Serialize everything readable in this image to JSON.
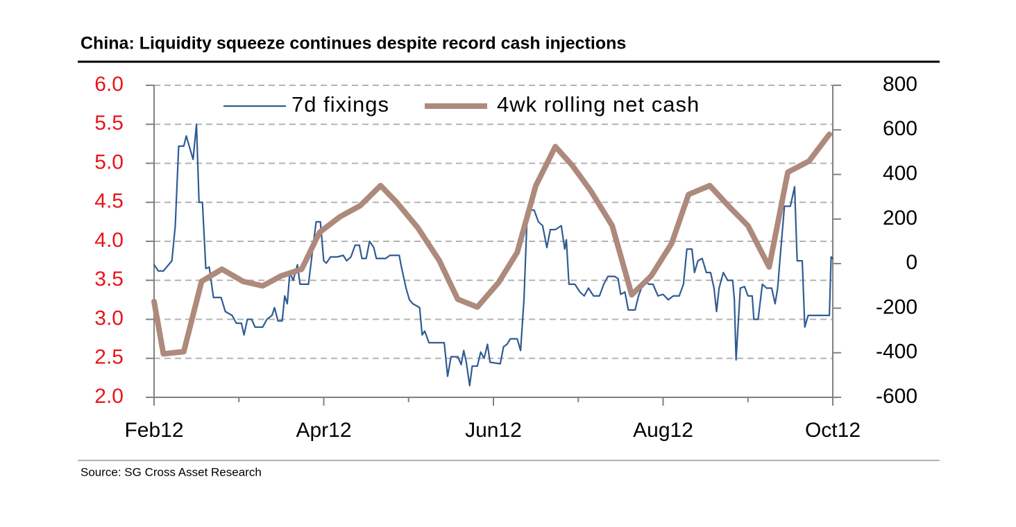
{
  "chart_data": {
    "type": "line",
    "title": "China: Liquidity squeeze continues despite record cash injections",
    "source": "Source: SG Cross Asset Research",
    "xlim": [
      0,
      8
    ],
    "xticks": [
      {
        "value": 0,
        "label": "Feb12"
      },
      {
        "value": 2,
        "label": "Apr12"
      },
      {
        "value": 4,
        "label": "Jun12"
      },
      {
        "value": 6,
        "label": "Aug12"
      },
      {
        "value": 8,
        "label": "Oct12"
      }
    ],
    "xminor_ticks": [
      1,
      3,
      5,
      7
    ],
    "ylim": [
      2,
      6
    ],
    "yticks": [
      {
        "value": 2,
        "label": "2.0"
      },
      2.5,
      {
        "value": 3,
        "label": "3.0"
      },
      3.5,
      {
        "value": 4,
        "label": "4.0"
      },
      4.5,
      {
        "value": 5,
        "label": "5.0"
      },
      5.5,
      {
        "value": 6,
        "label": "6.0"
      }
    ],
    "ytick_color": "#e8141b",
    "y2lim": [
      -600,
      800
    ],
    "y2ticks": [
      -600,
      -400,
      -200,
      0,
      200,
      400,
      600,
      800
    ],
    "grid": true,
    "legend": "top",
    "series": [
      {
        "name": "7d fixings",
        "color": "#2f5b93",
        "axis": "y",
        "x": [
          0,
          0.05,
          0.11,
          0.21,
          0.25,
          0.29,
          0.35,
          0.38,
          0.46,
          0.5,
          0.53,
          0.57,
          0.61,
          0.65,
          0.7,
          0.79,
          0.84,
          0.92,
          0.97,
          1.03,
          1.06,
          1.1,
          1.15,
          1.19,
          1.28,
          1.33,
          1.39,
          1.42,
          1.46,
          1.51,
          1.54,
          1.57,
          1.6,
          1.64,
          1.69,
          1.72,
          1.82,
          1.87,
          1.91,
          1.96,
          2.0,
          2.03,
          2.08,
          2.16,
          2.23,
          2.27,
          2.32,
          2.37,
          2.42,
          2.45,
          2.5,
          2.54,
          2.59,
          2.62,
          2.73,
          2.78,
          2.89,
          2.91,
          2.97,
          3.01,
          3.05,
          3.13,
          3.16,
          3.19,
          3.24,
          3.42,
          3.46,
          3.5,
          3.58,
          3.62,
          3.65,
          3.68,
          3.72,
          3.75,
          3.81,
          3.85,
          3.89,
          3.93,
          3.96,
          4.08,
          4.12,
          4.16,
          4.2,
          4.28,
          4.32,
          4.36,
          4.4,
          4.48,
          4.53,
          4.58,
          4.63,
          4.67,
          4.73,
          4.8,
          4.84,
          4.86,
          4.89,
          4.96,
          5.02,
          5.07,
          5.12,
          5.18,
          5.25,
          5.3,
          5.35,
          5.43,
          5.47,
          5.5,
          5.55,
          5.59,
          5.67,
          5.71,
          5.78,
          5.83,
          5.88,
          5.94,
          6.0,
          6.06,
          6.12,
          6.19,
          6.24,
          6.28,
          6.34,
          6.37,
          6.41,
          6.46,
          6.51,
          6.56,
          6.6,
          6.63,
          6.66,
          6.71,
          6.76,
          6.82,
          6.84,
          6.86,
          6.91,
          6.96,
          7.0,
          7.05,
          7.07,
          7.12,
          7.17,
          7.22,
          7.28,
          7.32,
          7.35,
          7.38,
          7.43,
          7.5,
          7.55,
          7.58,
          7.64,
          7.67,
          7.71,
          7.96,
          7.98,
          8.0
        ],
        "values": [
          3.7,
          3.62,
          3.62,
          3.75,
          4.2,
          5.22,
          5.22,
          5.35,
          5.05,
          5.5,
          4.5,
          4.5,
          3.65,
          3.67,
          3.28,
          3.28,
          3.1,
          3.05,
          2.95,
          2.95,
          2.8,
          3.0,
          3.0,
          2.9,
          2.9,
          3.0,
          3.05,
          3.15,
          2.98,
          2.98,
          3.3,
          3.2,
          3.6,
          3.5,
          3.7,
          3.45,
          3.45,
          3.9,
          4.25,
          4.25,
          3.75,
          3.72,
          3.8,
          3.8,
          3.82,
          3.75,
          3.8,
          3.95,
          3.95,
          3.78,
          3.78,
          4.0,
          3.92,
          3.78,
          3.78,
          3.82,
          3.82,
          3.7,
          3.4,
          3.25,
          3.2,
          3.15,
          2.8,
          2.85,
          2.7,
          2.7,
          2.27,
          2.52,
          2.52,
          2.42,
          2.6,
          2.45,
          2.15,
          2.4,
          2.4,
          2.58,
          2.5,
          2.68,
          2.45,
          2.43,
          2.65,
          2.68,
          2.75,
          2.75,
          2.6,
          3.25,
          4.4,
          4.4,
          4.25,
          4.2,
          3.92,
          4.15,
          4.15,
          4.2,
          3.9,
          4.02,
          3.45,
          3.45,
          3.35,
          3.3,
          3.4,
          3.3,
          3.3,
          3.45,
          3.55,
          3.55,
          3.52,
          3.32,
          3.35,
          3.12,
          3.12,
          3.3,
          3.5,
          3.45,
          3.45,
          3.3,
          3.32,
          3.25,
          3.3,
          3.3,
          3.45,
          3.9,
          3.9,
          3.6,
          3.75,
          3.78,
          3.6,
          3.6,
          3.4,
          3.1,
          3.4,
          3.6,
          3.5,
          3.5,
          3.25,
          2.48,
          3.4,
          3.42,
          3.3,
          3.3,
          3.0,
          3.0,
          3.45,
          3.4,
          3.4,
          3.2,
          3.4,
          3.8,
          4.45,
          4.45,
          4.7,
          3.75,
          3.75,
          2.9,
          3.05,
          3.05,
          3.8,
          3.78
        ]
      },
      {
        "name": "4wk rolling net cash",
        "color": "#ad8a7c",
        "axis": "y2",
        "x": [
          0,
          0.11,
          0.35,
          0.56,
          0.8,
          1.05,
          1.28,
          1.5,
          1.74,
          1.95,
          2.19,
          2.43,
          2.67,
          2.86,
          3.11,
          3.36,
          3.58,
          3.81,
          4.06,
          4.28,
          4.5,
          4.73,
          4.93,
          5.15,
          5.4,
          5.63,
          5.86,
          6.1,
          6.3,
          6.55,
          6.78,
          7.0,
          7.25,
          7.47,
          7.72,
          7.96
        ],
        "values": [
          -170,
          -405,
          -395,
          -80,
          -25,
          -80,
          -100,
          -55,
          -25,
          140,
          210,
          260,
          350,
          275,
          160,
          15,
          -160,
          -195,
          -85,
          50,
          350,
          525,
          440,
          325,
          170,
          -140,
          -55,
          90,
          310,
          350,
          255,
          170,
          -15,
          410,
          460,
          580
        ]
      }
    ]
  }
}
